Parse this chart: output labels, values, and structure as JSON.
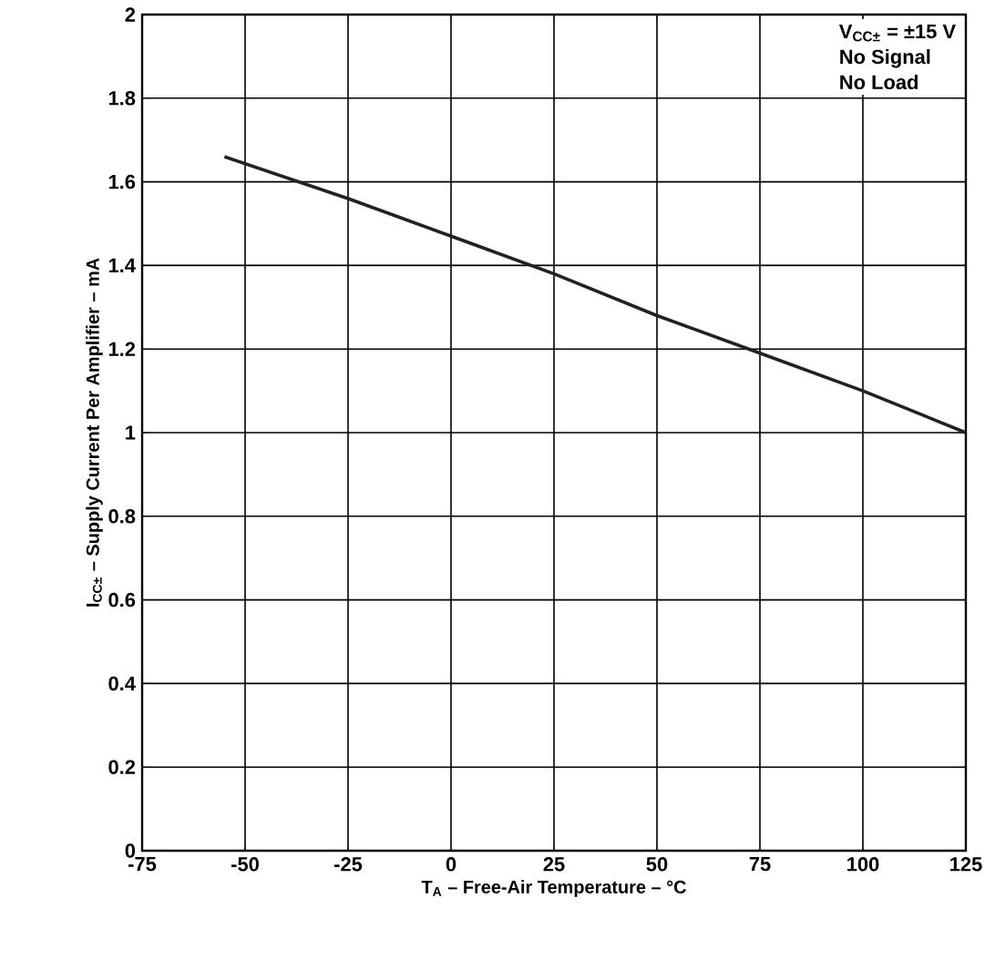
{
  "chart_data": {
    "type": "line",
    "xlabel": "T$_{A}$ – Free-Air Temperature – °C",
    "ylabel": "I$_{CC±}$ – Supply Current Per Amplifier – mA",
    "annotations": [
      "V$_{CC±}$ = ±15 V",
      "No Signal",
      "No Load"
    ],
    "series": [
      {
        "color": "#222222",
        "x": [
          -55,
          -25,
          0,
          25,
          50,
          75,
          100,
          125
        ],
        "values": [
          1.66,
          1.56,
          1.47,
          1.38,
          1.28,
          1.19,
          1.1,
          1.0
        ]
      }
    ],
    "xlim": [
      -75,
      125
    ],
    "xticks": [
      -75,
      -50,
      -25,
      0,
      25,
      50,
      75,
      100,
      125
    ],
    "ylim": [
      0,
      2
    ],
    "yticks": [
      0,
      0.2,
      0.4,
      0.6,
      0.8,
      1,
      1.2,
      1.4,
      1.6,
      1.8,
      2
    ],
    "grid": true,
    "marker": "none",
    "line_style": "solid"
  }
}
